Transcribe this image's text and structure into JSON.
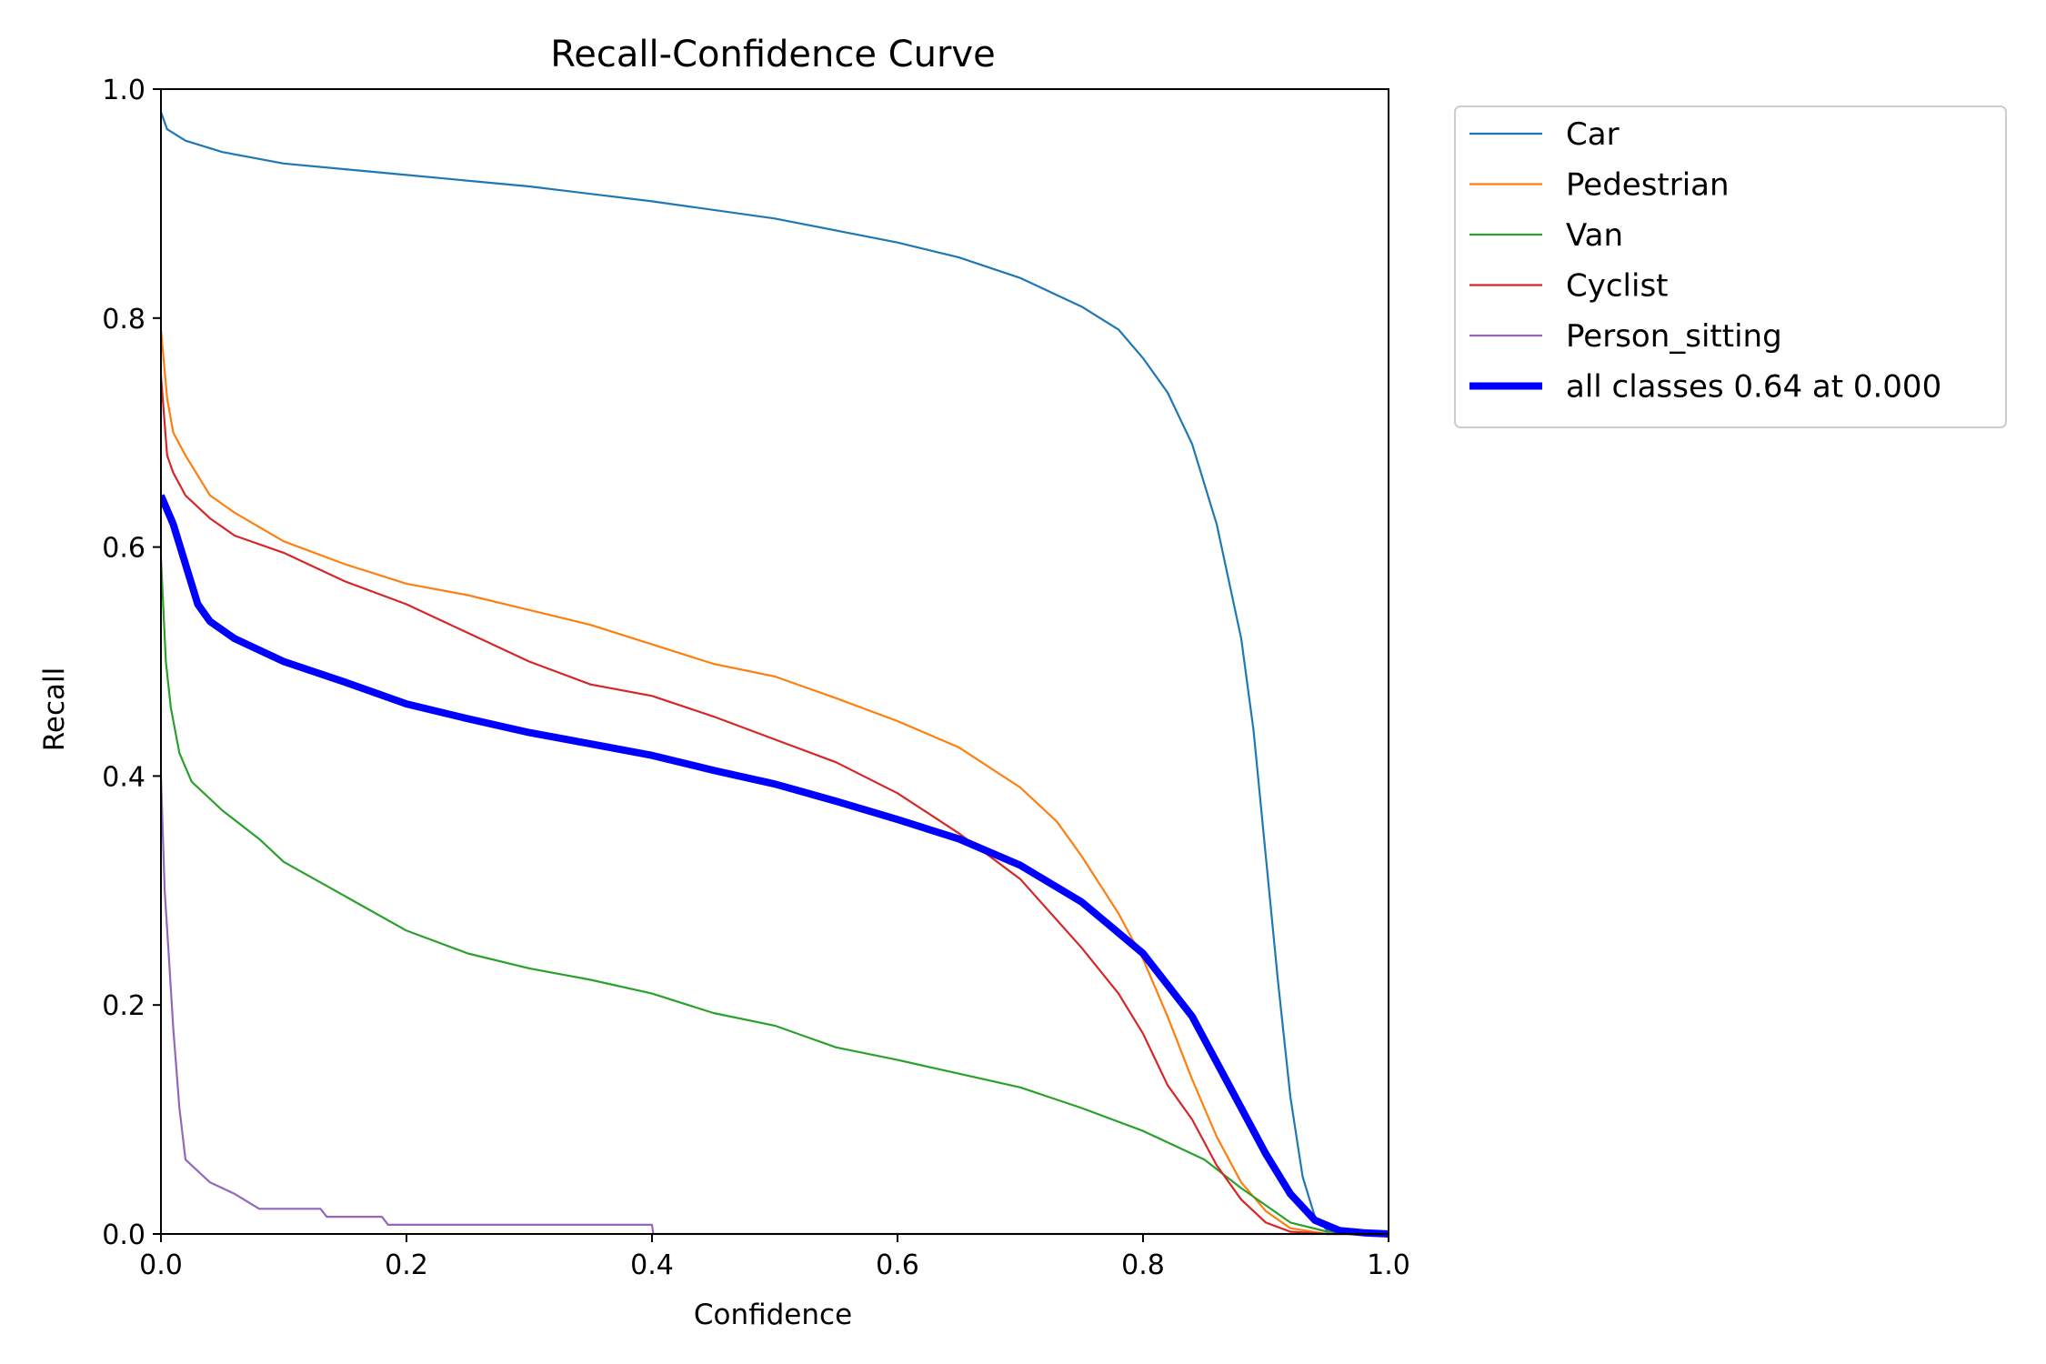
{
  "chart_data": {
    "type": "line",
    "title": "Recall-Confidence Curve",
    "xlabel": "Confidence",
    "ylabel": "Recall",
    "xlim": [
      0,
      1
    ],
    "ylim": [
      0,
      1
    ],
    "xticks": [
      "0.0",
      "0.2",
      "0.4",
      "0.6",
      "0.8",
      "1.0"
    ],
    "yticks": [
      "0.0",
      "0.2",
      "0.4",
      "0.6",
      "0.8",
      "1.0"
    ],
    "grid": false,
    "legend_position": "outside-upper-right",
    "series": [
      {
        "name": "Car",
        "color": "#1f77b4",
        "points": [
          [
            0.0,
            0.98
          ],
          [
            0.005,
            0.965
          ],
          [
            0.02,
            0.955
          ],
          [
            0.05,
            0.945
          ],
          [
            0.1,
            0.935
          ],
          [
            0.15,
            0.93
          ],
          [
            0.2,
            0.925
          ],
          [
            0.3,
            0.915
          ],
          [
            0.4,
            0.902
          ],
          [
            0.5,
            0.887
          ],
          [
            0.6,
            0.866
          ],
          [
            0.65,
            0.853
          ],
          [
            0.7,
            0.835
          ],
          [
            0.75,
            0.81
          ],
          [
            0.78,
            0.79
          ],
          [
            0.8,
            0.765
          ],
          [
            0.82,
            0.735
          ],
          [
            0.84,
            0.69
          ],
          [
            0.86,
            0.62
          ],
          [
            0.88,
            0.52
          ],
          [
            0.89,
            0.44
          ],
          [
            0.9,
            0.33
          ],
          [
            0.91,
            0.22
          ],
          [
            0.92,
            0.12
          ],
          [
            0.93,
            0.05
          ],
          [
            0.94,
            0.015
          ],
          [
            0.95,
            0.003
          ],
          [
            0.97,
            0.001
          ],
          [
            1.0,
            0.0
          ]
        ]
      },
      {
        "name": "Pedestrian",
        "color": "#ff7f0e",
        "points": [
          [
            0.0,
            0.79
          ],
          [
            0.005,
            0.73
          ],
          [
            0.01,
            0.7
          ],
          [
            0.02,
            0.68
          ],
          [
            0.04,
            0.645
          ],
          [
            0.06,
            0.63
          ],
          [
            0.1,
            0.605
          ],
          [
            0.15,
            0.585
          ],
          [
            0.2,
            0.568
          ],
          [
            0.25,
            0.558
          ],
          [
            0.3,
            0.545
          ],
          [
            0.35,
            0.532
          ],
          [
            0.4,
            0.515
          ],
          [
            0.45,
            0.498
          ],
          [
            0.5,
            0.487
          ],
          [
            0.55,
            0.468
          ],
          [
            0.6,
            0.448
          ],
          [
            0.65,
            0.425
          ],
          [
            0.7,
            0.39
          ],
          [
            0.73,
            0.36
          ],
          [
            0.75,
            0.33
          ],
          [
            0.78,
            0.28
          ],
          [
            0.8,
            0.24
          ],
          [
            0.82,
            0.19
          ],
          [
            0.84,
            0.135
          ],
          [
            0.86,
            0.085
          ],
          [
            0.88,
            0.045
          ],
          [
            0.9,
            0.02
          ],
          [
            0.92,
            0.005
          ],
          [
            0.95,
            0.0
          ],
          [
            1.0,
            0.0
          ]
        ]
      },
      {
        "name": "Van",
        "color": "#2ca02c",
        "points": [
          [
            0.0,
            0.59
          ],
          [
            0.004,
            0.5
          ],
          [
            0.008,
            0.46
          ],
          [
            0.015,
            0.42
          ],
          [
            0.025,
            0.395
          ],
          [
            0.05,
            0.37
          ],
          [
            0.08,
            0.345
          ],
          [
            0.1,
            0.325
          ],
          [
            0.15,
            0.295
          ],
          [
            0.2,
            0.265
          ],
          [
            0.25,
            0.245
          ],
          [
            0.3,
            0.232
          ],
          [
            0.35,
            0.222
          ],
          [
            0.4,
            0.21
          ],
          [
            0.45,
            0.193
          ],
          [
            0.5,
            0.182
          ],
          [
            0.55,
            0.163
          ],
          [
            0.6,
            0.152
          ],
          [
            0.65,
            0.14
          ],
          [
            0.7,
            0.128
          ],
          [
            0.75,
            0.11
          ],
          [
            0.8,
            0.09
          ],
          [
            0.85,
            0.065
          ],
          [
            0.88,
            0.04
          ],
          [
            0.9,
            0.025
          ],
          [
            0.92,
            0.01
          ],
          [
            0.95,
            0.002
          ],
          [
            1.0,
            0.0
          ]
        ]
      },
      {
        "name": "Cyclist",
        "color": "#d62728",
        "points": [
          [
            0.0,
            0.75
          ],
          [
            0.005,
            0.68
          ],
          [
            0.01,
            0.665
          ],
          [
            0.02,
            0.645
          ],
          [
            0.04,
            0.625
          ],
          [
            0.06,
            0.61
          ],
          [
            0.1,
            0.595
          ],
          [
            0.15,
            0.57
          ],
          [
            0.2,
            0.55
          ],
          [
            0.25,
            0.525
          ],
          [
            0.3,
            0.5
          ],
          [
            0.35,
            0.48
          ],
          [
            0.4,
            0.47
          ],
          [
            0.45,
            0.452
          ],
          [
            0.5,
            0.432
          ],
          [
            0.55,
            0.412
          ],
          [
            0.6,
            0.385
          ],
          [
            0.65,
            0.35
          ],
          [
            0.7,
            0.31
          ],
          [
            0.75,
            0.25
          ],
          [
            0.78,
            0.21
          ],
          [
            0.8,
            0.175
          ],
          [
            0.82,
            0.13
          ],
          [
            0.84,
            0.1
          ],
          [
            0.86,
            0.06
          ],
          [
            0.88,
            0.03
          ],
          [
            0.9,
            0.01
          ],
          [
            0.92,
            0.002
          ],
          [
            0.95,
            0.0
          ],
          [
            1.0,
            0.0
          ]
        ]
      },
      {
        "name": "Person_sitting",
        "color": "#9467bd",
        "points": [
          [
            0.0,
            0.4
          ],
          [
            0.003,
            0.3
          ],
          [
            0.006,
            0.25
          ],
          [
            0.01,
            0.18
          ],
          [
            0.015,
            0.11
          ],
          [
            0.02,
            0.065
          ],
          [
            0.03,
            0.055
          ],
          [
            0.04,
            0.045
          ],
          [
            0.06,
            0.035
          ],
          [
            0.08,
            0.022
          ],
          [
            0.13,
            0.022
          ],
          [
            0.135,
            0.015
          ],
          [
            0.18,
            0.015
          ],
          [
            0.185,
            0.008
          ],
          [
            0.4,
            0.008
          ],
          [
            0.401,
            0.0
          ],
          [
            1.0,
            0.0
          ]
        ]
      },
      {
        "name": "all classes 0.64 at 0.000",
        "color": "#0000ff",
        "bold": true,
        "points": [
          [
            0.0,
            0.645
          ],
          [
            0.01,
            0.62
          ],
          [
            0.02,
            0.585
          ],
          [
            0.03,
            0.55
          ],
          [
            0.04,
            0.535
          ],
          [
            0.06,
            0.52
          ],
          [
            0.1,
            0.5
          ],
          [
            0.15,
            0.482
          ],
          [
            0.2,
            0.463
          ],
          [
            0.25,
            0.45
          ],
          [
            0.3,
            0.438
          ],
          [
            0.35,
            0.428
          ],
          [
            0.4,
            0.418
          ],
          [
            0.45,
            0.405
          ],
          [
            0.5,
            0.393
          ],
          [
            0.55,
            0.378
          ],
          [
            0.6,
            0.362
          ],
          [
            0.65,
            0.345
          ],
          [
            0.7,
            0.322
          ],
          [
            0.75,
            0.29
          ],
          [
            0.8,
            0.245
          ],
          [
            0.84,
            0.19
          ],
          [
            0.87,
            0.13
          ],
          [
            0.9,
            0.07
          ],
          [
            0.92,
            0.035
          ],
          [
            0.94,
            0.012
          ],
          [
            0.96,
            0.003
          ],
          [
            0.98,
            0.001
          ],
          [
            1.0,
            0.0
          ]
        ]
      }
    ]
  }
}
